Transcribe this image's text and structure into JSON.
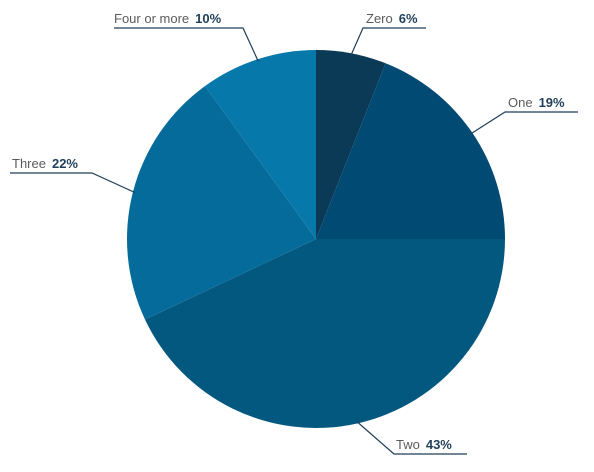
{
  "chart_data": {
    "type": "pie",
    "title": "",
    "slices": [
      {
        "label": "Zero",
        "value": 6,
        "value_label": "6%",
        "color": "#0b3a56"
      },
      {
        "label": "One",
        "value": 19,
        "value_label": "19%",
        "color": "#004a73"
      },
      {
        "label": "Two",
        "value": 43,
        "value_label": "43%",
        "color": "#03587f"
      },
      {
        "label": "Three",
        "value": 22,
        "value_label": "22%",
        "color": "#056b9a"
      },
      {
        "label": "Four or more",
        "value": 10,
        "value_label": "10%",
        "color": "#0778aa"
      }
    ],
    "start": "12 o'clock",
    "direction": "clockwise",
    "legend": "none"
  },
  "colors": {
    "background": "#ffffff",
    "label_text": "#5b5b5b",
    "value_text": "#1f3f5a",
    "leader_line": "#1f3f5a"
  }
}
